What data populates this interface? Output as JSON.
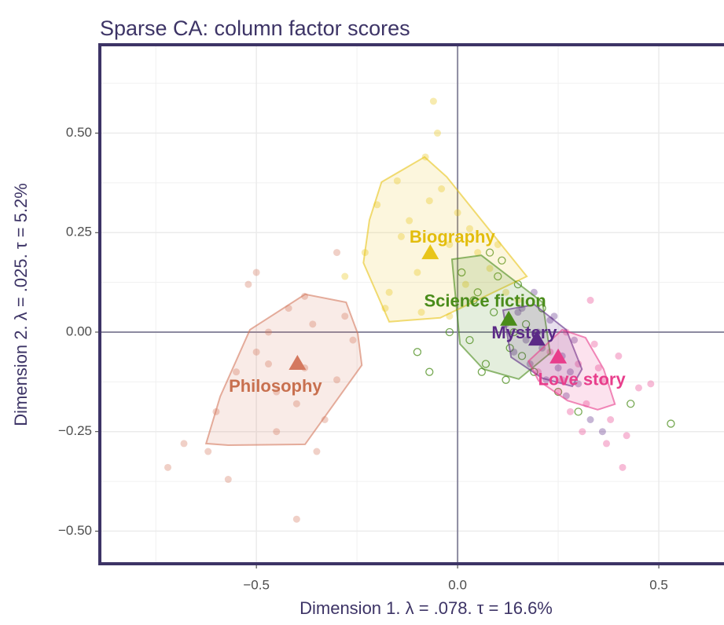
{
  "chart_data": {
    "type": "scatter",
    "title": "Sparse CA: column factor scores",
    "x_label": "Dimension 1.   λ = .078.  τ = 16.6%",
    "y_label": "Dimension 2.   λ = .025.  τ = 5.2%",
    "xlim": [
      -0.889,
      0.662
    ],
    "ylim": [
      -0.582,
      0.722
    ],
    "xticks": [
      {
        "value": -0.5,
        "label": "−0.5"
      },
      {
        "value": 0,
        "label": "0.0"
      },
      {
        "value": 0.5,
        "label": "0.5"
      }
    ],
    "yticks": [
      {
        "value": -0.5,
        "label": "−0.50"
      },
      {
        "value": -0.25,
        "label": "−0.25"
      },
      {
        "value": 0,
        "label": "0.00"
      },
      {
        "value": 0.25,
        "label": "0.25"
      },
      {
        "value": 0.5,
        "label": "0.50"
      }
    ],
    "xminor": [
      -0.75,
      -0.25,
      0.25
    ],
    "yminor": [
      -0.375,
      -0.125,
      0.125,
      0.375,
      0.625
    ],
    "grid": true,
    "series": [
      {
        "name": "Philosophy",
        "color": "#d4795f",
        "label_color": "#c8704f",
        "centroid": {
          "x": -0.398,
          "y": -0.079
        },
        "hull": {
          "x": [
            -0.625,
            -0.59,
            -0.516,
            -0.379,
            -0.277,
            -0.248,
            -0.238,
            -0.379,
            -0.57
          ],
          "y": [
            -0.28,
            -0.162,
            0.006,
            0.095,
            0.075,
            -0.004,
            -0.083,
            -0.282,
            -0.284
          ]
        },
        "x": [
          -0.72,
          -0.68,
          -0.6,
          -0.55,
          -0.52,
          -0.5,
          -0.47,
          -0.45,
          -0.42,
          -0.4,
          -0.38,
          -0.36,
          -0.33,
          -0.3,
          -0.28,
          -0.26,
          -0.45,
          -0.5,
          -0.35,
          -0.4,
          -0.57,
          -0.38,
          -0.3,
          -0.62,
          -0.47
        ],
        "y": [
          -0.34,
          -0.28,
          -0.2,
          -0.1,
          0.12,
          -0.05,
          0.0,
          -0.15,
          0.06,
          -0.18,
          -0.09,
          0.02,
          -0.22,
          -0.12,
          0.04,
          -0.02,
          -0.25,
          0.15,
          -0.3,
          -0.47,
          -0.37,
          0.09,
          0.2,
          -0.3,
          -0.08
        ]
      },
      {
        "name": "Biography",
        "color": "#e8c51a",
        "label_color": "#e3bd0c",
        "centroid": {
          "x": -0.068,
          "y": 0.199
        },
        "hull": {
          "x": [
            -0.189,
            -0.082,
            -0.027,
            0.172,
            -0.043,
            -0.17,
            -0.234,
            -0.219
          ],
          "y": [
            0.377,
            0.44,
            0.39,
            0.14,
            0.036,
            0.026,
            0.174,
            0.282
          ]
        },
        "x": [
          -0.23,
          -0.2,
          -0.17,
          -0.15,
          -0.12,
          -0.1,
          -0.08,
          -0.06,
          -0.04,
          -0.02,
          0.0,
          0.02,
          0.05,
          0.08,
          0.12,
          0.15,
          -0.09,
          -0.05,
          -0.14,
          -0.02,
          -0.28,
          0.1,
          -0.18,
          -0.07,
          0.03
        ],
        "y": [
          0.2,
          0.32,
          0.1,
          0.38,
          0.28,
          0.15,
          0.44,
          0.58,
          0.36,
          0.22,
          0.3,
          0.12,
          0.2,
          0.16,
          0.1,
          0.08,
          0.05,
          0.5,
          0.24,
          0.04,
          0.14,
          0.22,
          0.06,
          0.33,
          0.26
        ]
      },
      {
        "name": "Science fiction",
        "color": "#4a8c1a",
        "label_color": "#4a8c1a",
        "hollow": true,
        "centroid": {
          "x": 0.127,
          "y": 0.032
        },
        "hull": {
          "x": [
            -0.014,
            0.059,
            0.211,
            0.23,
            0.152,
            0.064,
            0.006
          ],
          "y": [
            0.183,
            0.193,
            0.075,
            -0.053,
            -0.118,
            -0.093,
            -0.03
          ]
        },
        "x": [
          -0.1,
          -0.02,
          0.01,
          0.03,
          0.05,
          0.07,
          0.09,
          0.11,
          0.13,
          0.15,
          0.17,
          0.19,
          0.21,
          0.08,
          0.12,
          0.04,
          0.16,
          0.25,
          0.3,
          0.53,
          0.43,
          0.06,
          0.1,
          0.14,
          -0.07
        ],
        "y": [
          -0.05,
          0.0,
          0.15,
          -0.02,
          0.1,
          -0.08,
          0.05,
          0.18,
          -0.04,
          0.12,
          0.02,
          -0.1,
          0.06,
          0.2,
          -0.12,
          0.08,
          -0.06,
          -0.15,
          -0.2,
          -0.23,
          -0.18,
          -0.1,
          0.14,
          0.0,
          -0.1
        ]
      },
      {
        "name": "Mystery",
        "color": "#5b2a86",
        "label_color": "#5b2a86",
        "centroid": {
          "x": 0.197,
          "y": -0.018
        },
        "hull": {
          "x": [
            0.113,
            0.191,
            0.27,
            0.309,
            0.285,
            0.211,
            0.133
          ],
          "y": [
            0.055,
            0.069,
            0.006,
            -0.093,
            -0.136,
            -0.116,
            -0.063
          ]
        },
        "x": [
          0.12,
          0.14,
          0.16,
          0.18,
          0.2,
          0.22,
          0.24,
          0.26,
          0.28,
          0.3,
          0.19,
          0.23,
          0.17,
          0.27,
          0.36,
          0.33,
          0.21,
          0.25,
          0.29,
          0.15
        ],
        "y": [
          0.02,
          -0.05,
          0.06,
          -0.08,
          0.0,
          -0.12,
          0.04,
          -0.06,
          -0.1,
          -0.13,
          0.1,
          0.03,
          -0.02,
          -0.16,
          -0.25,
          -0.22,
          -0.04,
          -0.09,
          -0.02,
          0.05
        ]
      },
      {
        "name": "Love story",
        "color": "#e83e8c",
        "label_color": "#e83e8c",
        "centroid": {
          "x": 0.25,
          "y": -0.063
        },
        "hull": {
          "x": [
            0.26,
            0.318,
            0.363,
            0.391,
            0.348,
            0.273,
            0.201,
            0.176
          ],
          "y": [
            0.006,
            -0.014,
            -0.093,
            -0.181,
            -0.195,
            -0.172,
            -0.122,
            -0.073
          ]
        },
        "x": [
          0.2,
          0.23,
          0.25,
          0.27,
          0.3,
          0.32,
          0.34,
          0.36,
          0.38,
          0.4,
          0.42,
          0.45,
          0.48,
          0.28,
          0.33,
          0.31,
          0.37,
          0.26,
          0.35,
          0.41
        ],
        "y": [
          -0.1,
          -0.05,
          -0.15,
          0.0,
          -0.08,
          -0.18,
          -0.03,
          -0.12,
          -0.22,
          -0.06,
          -0.26,
          -0.14,
          -0.13,
          -0.2,
          0.08,
          -0.25,
          -0.28,
          -0.12,
          -0.09,
          -0.34
        ]
      }
    ]
  }
}
